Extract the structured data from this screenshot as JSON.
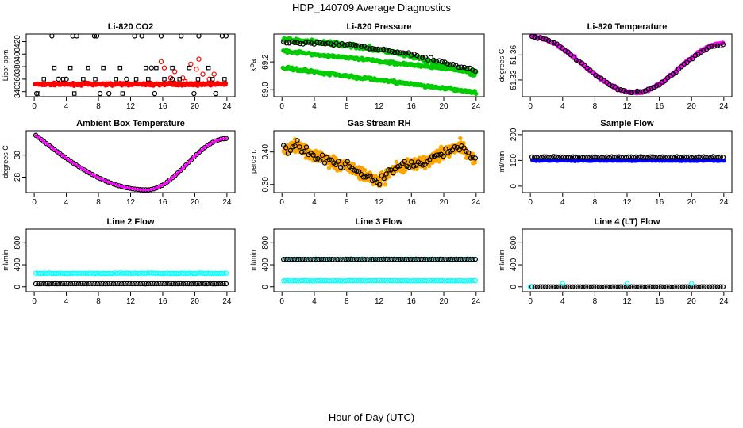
{
  "figure": {
    "title": "HDP_140709  Average Diagnostics",
    "xlabel": "Hour of Day (UTC)"
  },
  "colors": {
    "black": "#000000",
    "red": "#ff0000",
    "green": "#00cc00",
    "magenta": "#ff00ff",
    "orange": "#ffa500",
    "blue": "#0000ff",
    "cyan": "#00ffff",
    "purple": "#660066"
  },
  "chart_data": [
    {
      "type": "scatter",
      "title": "Li-820 CO2",
      "ylabel": "Licor ppm",
      "xlim": [
        -1,
        25
      ],
      "ylim": [
        332,
        432
      ],
      "xticks": [
        0,
        4,
        8,
        12,
        16,
        20,
        24
      ],
      "yticks": [
        340,
        360,
        380,
        400,
        420
      ],
      "series": [
        {
          "name": "co2-dense",
          "color": "red",
          "style": "dense",
          "gen": "flat",
          "base": 352,
          "amp": 0,
          "noise": 3,
          "n": 260
        },
        {
          "name": "co2-red-sparse",
          "color": "red",
          "style": "ring",
          "x": [
            15.8,
            16.2,
            17.5,
            18.5,
            19.5,
            20.5,
            21,
            17,
            18.8,
            20.2,
            21.8,
            22.4
          ],
          "y": [
            388,
            378,
            372,
            362,
            384,
            392,
            368,
            362,
            356,
            376,
            360,
            368
          ]
        },
        {
          "name": "co2-black-squares",
          "color": "black",
          "style": "square",
          "x": [
            1.2,
            2.5,
            3.6,
            4.5,
            6.1,
            6.7,
            7.6,
            8.6,
            10.2,
            10.7,
            12.7,
            13.9,
            14.2,
            15.2,
            16.2,
            17.2,
            18.1,
            19.3,
            20.4,
            21.7,
            22.2,
            23.7,
            0.5,
            5,
            11
          ],
          "y": [
            360,
            378,
            360,
            378,
            360,
            378,
            360,
            378,
            360,
            378,
            360,
            378,
            360,
            378,
            360,
            378,
            360,
            378,
            360,
            378,
            360,
            360,
            337,
            337,
            337
          ]
        },
        {
          "name": "co2-black-rings",
          "color": "black",
          "style": "ring",
          "x": [
            2.2,
            3.0,
            4.8,
            5.3,
            7.5,
            7.8,
            9.3,
            11.5,
            12.5,
            13.4,
            14.6,
            15.8,
            17.2,
            18.3,
            19.9,
            20.5,
            23.4,
            23.9,
            0.3,
            4,
            8.2,
            15,
            22.6
          ],
          "y": [
            429,
            360,
            429,
            429,
            429,
            429,
            337,
            360,
            429,
            429,
            378,
            429,
            360,
            429,
            337,
            429,
            429,
            429,
            337,
            360,
            337,
            337,
            337
          ]
        }
      ]
    },
    {
      "type": "scatter",
      "title": "Li-820 Pressure",
      "ylabel": "kPa",
      "xlim": [
        -1,
        25
      ],
      "ylim": [
        68.95,
        69.4
      ],
      "xticks": [
        0,
        4,
        8,
        12,
        16,
        20,
        24
      ],
      "yticks": [
        69.0,
        69.2
      ],
      "ytick_labels": [
        "69.0",
        "69.2"
      ],
      "series": [
        {
          "name": "p-top",
          "color": "green",
          "style": "dense",
          "gen": "lin",
          "start": 69.36,
          "end": 69.11,
          "bump": 0.05,
          "noise": 0.02,
          "n": 240
        },
        {
          "name": "p-mid",
          "color": "green",
          "style": "dense",
          "gen": "lin",
          "start": 69.28,
          "end": 69.13,
          "bump": 0.0,
          "noise": 0.015,
          "n": 220
        },
        {
          "name": "p-low",
          "color": "green",
          "style": "dense",
          "gen": "lin",
          "start": 69.16,
          "end": 68.98,
          "bump": 0.0,
          "noise": 0.015,
          "n": 220
        },
        {
          "name": "p-black",
          "color": "black",
          "style": "ring",
          "gen": "lin",
          "start": 69.34,
          "end": 69.13,
          "bump": 0.06,
          "noise": 0.015,
          "n": 70
        }
      ]
    },
    {
      "type": "scatter",
      "title": "Li-820 Temperature",
      "ylabel": "degrees C",
      "xlim": [
        -1,
        25
      ],
      "ylim": [
        51.31,
        51.385
      ],
      "xticks": [
        0,
        4,
        8,
        12,
        16,
        20,
        24
      ],
      "yticks": [
        51.33,
        51.36
      ],
      "ytick_labels": [
        "51.33",
        "51.36"
      ],
      "series": [
        {
          "name": "t-mag",
          "color": "magenta",
          "style": "dense",
          "gen": "vee",
          "start": 51.382,
          "min": 51.315,
          "minx": 13,
          "end": 51.374,
          "noise": 0.002,
          "n": 300
        },
        {
          "name": "t-black",
          "color": "black",
          "style": "ring",
          "gen": "vee",
          "start": 51.382,
          "min": 51.315,
          "minx": 13,
          "end": 51.372,
          "noise": 0.002,
          "n": 70
        }
      ]
    },
    {
      "type": "scatter",
      "title": "Ambient Box Temperature",
      "ylabel": "degrees C",
      "xlim": [
        -1,
        25
      ],
      "ylim": [
        26.6,
        32.2
      ],
      "xticks": [
        0,
        4,
        8,
        12,
        16,
        20,
        24
      ],
      "yticks": [
        28,
        30
      ],
      "series": [
        {
          "name": "amb-black",
          "color": "black",
          "style": "ring",
          "gen": "amb",
          "n": 72
        },
        {
          "name": "amb-mag",
          "color": "magenta",
          "style": "small",
          "gen": "amb",
          "n": 140
        }
      ]
    },
    {
      "type": "scatter",
      "title": "Gas Stream RH",
      "ylabel": "percent",
      "xlim": [
        -1,
        25
      ],
      "ylim": [
        0.275,
        0.465
      ],
      "xticks": [
        0,
        4,
        8,
        12,
        16,
        20,
        24
      ],
      "yticks": [
        0.3,
        0.4
      ],
      "ytick_labels": [
        "0.30",
        "0.40"
      ],
      "series": [
        {
          "name": "rh-orange",
          "color": "orange",
          "style": "dense",
          "gen": "rh",
          "noise": 0.028,
          "n": 560
        },
        {
          "name": "rh-black",
          "color": "black",
          "style": "ring",
          "gen": "rh",
          "noise": 0.02,
          "n": 85
        }
      ]
    },
    {
      "type": "scatter",
      "title": "Sample Flow",
      "ylabel": "ml/min",
      "xlim": [
        -1,
        25
      ],
      "ylim": [
        -25,
        215
      ],
      "xticks": [
        0,
        4,
        8,
        12,
        16,
        20,
        24
      ],
      "yticks": [
        0,
        100,
        200
      ],
      "series": [
        {
          "name": "sf-blue",
          "color": "blue",
          "style": "dense",
          "gen": "flat",
          "base": 100,
          "amp": 0,
          "noise": 3,
          "n": 220
        },
        {
          "name": "sf-black",
          "color": "black",
          "style": "ring",
          "gen": "flat",
          "base": 113,
          "amp": 0,
          "noise": 3,
          "n": 80
        }
      ]
    },
    {
      "type": "scatter",
      "title": "Line 2 Flow",
      "ylabel": "ml/min",
      "xlim": [
        -1,
        25
      ],
      "ylim": [
        -90,
        1050
      ],
      "xticks": [
        0,
        4,
        8,
        12,
        16,
        20,
        24
      ],
      "yticks": [
        0,
        400,
        800
      ],
      "series": [
        {
          "name": "l2-cyan",
          "color": "cyan",
          "style": "ring",
          "gen": "flat",
          "base": 245,
          "amp": 0,
          "noise": 8,
          "n": 85
        },
        {
          "name": "l2-black",
          "color": "black",
          "style": "ring",
          "gen": "flat",
          "base": 55,
          "amp": 0,
          "noise": 3,
          "n": 72
        }
      ]
    },
    {
      "type": "scatter",
      "title": "Line 3 Flow",
      "ylabel": "ml/min",
      "xlim": [
        -1,
        25
      ],
      "ylim": [
        -90,
        1050
      ],
      "xticks": [
        0,
        4,
        8,
        12,
        16,
        20,
        24
      ],
      "yticks": [
        0,
        400,
        800
      ],
      "series": [
        {
          "name": "l3-cyan-low",
          "color": "cyan",
          "style": "ring",
          "gen": "flat",
          "base": 110,
          "amp": 0,
          "noise": 6,
          "n": 85
        },
        {
          "name": "l3-cyan-high",
          "color": "cyan",
          "style": "ring",
          "gen": "flat",
          "base": 500,
          "amp": 0,
          "noise": 8,
          "n": 40
        },
        {
          "name": "l3-black",
          "color": "black",
          "style": "ring",
          "gen": "flat",
          "base": 500,
          "amp": 0,
          "noise": 5,
          "n": 72
        }
      ]
    },
    {
      "type": "scatter",
      "title": "Line 4 (LT) Flow",
      "ylabel": "ml/min",
      "xlim": [
        -1,
        25
      ],
      "ylim": [
        -90,
        1050
      ],
      "xticks": [
        0,
        4,
        8,
        12,
        16,
        20,
        24
      ],
      "yticks": [
        0,
        400,
        800
      ],
      "series": [
        {
          "name": "l4-black",
          "color": "black",
          "style": "ring",
          "gen": "flat",
          "base": 0,
          "amp": 0,
          "noise": 1,
          "n": 72
        },
        {
          "name": "l4-cyan",
          "color": "cyan",
          "style": "ring",
          "x": [
            0,
            4,
            12,
            20
          ],
          "y": [
            0,
            60,
            60,
            60
          ]
        }
      ]
    }
  ]
}
